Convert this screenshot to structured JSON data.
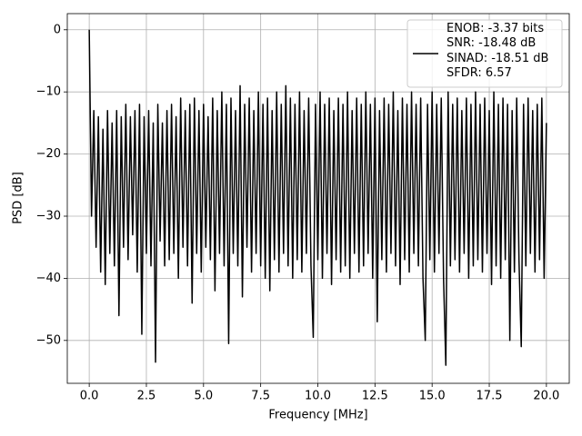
{
  "chart_data": {
    "type": "line",
    "xlabel": "Frequency [MHz]",
    "ylabel": "PSD [dB]",
    "xlim": [
      -0.96,
      21.0
    ],
    "ylim": [
      -56.9,
      2.6
    ],
    "xticks": [
      {
        "value": 0,
        "label": "0.0"
      },
      2.5,
      {
        "value": 5,
        "label": "5.0"
      },
      7.5,
      {
        "value": 10,
        "label": "10.0"
      },
      12.5,
      {
        "value": 15,
        "label": "15.0"
      },
      17.5,
      {
        "value": 20,
        "label": "20.0"
      }
    ],
    "yticks": [
      {
        "value": -50,
        "label": "−50"
      },
      {
        "value": -40,
        "label": "−40"
      },
      {
        "value": -30,
        "label": "−30"
      },
      {
        "value": -20,
        "label": "−20"
      },
      {
        "value": -10,
        "label": "−10"
      },
      0
    ],
    "grid": true,
    "legend": "upper right",
    "x": [
      0,
      0.1,
      0.2,
      0.3,
      0.4,
      0.5,
      0.6,
      0.7,
      0.8,
      0.9,
      1,
      1.1,
      1.2,
      1.3,
      1.4,
      1.5,
      1.6,
      1.7,
      1.8,
      1.9,
      2,
      2.1,
      2.2,
      2.3,
      2.4,
      2.5,
      2.6,
      2.7,
      2.8,
      2.9,
      3,
      3.1,
      3.2,
      3.3,
      3.4,
      3.5,
      3.6,
      3.7,
      3.8,
      3.9,
      4,
      4.1,
      4.2,
      4.3,
      4.4,
      4.5,
      4.6,
      4.7,
      4.8,
      4.9,
      5,
      5.1,
      5.2,
      5.3,
      5.4,
      5.5,
      5.6,
      5.7,
      5.8,
      5.9,
      6,
      6.1,
      6.2,
      6.3,
      6.4,
      6.5,
      6.6,
      6.7,
      6.8,
      6.9,
      7,
      7.1,
      7.2,
      7.3,
      7.4,
      7.5,
      7.6,
      7.7,
      7.8,
      7.9,
      8,
      8.1,
      8.2,
      8.3,
      8.4,
      8.5,
      8.6,
      8.7,
      8.8,
      8.9,
      9,
      9.1,
      9.2,
      9.3,
      9.4,
      9.5,
      9.6,
      9.7,
      9.8,
      9.9,
      10,
      10.1,
      10.2,
      10.3,
      10.4,
      10.5,
      10.6,
      10.7,
      10.8,
      10.9,
      11,
      11.1,
      11.2,
      11.3,
      11.4,
      11.5,
      11.6,
      11.7,
      11.8,
      11.9,
      12,
      12.1,
      12.2,
      12.3,
      12.4,
      12.5,
      12.6,
      12.7,
      12.8,
      12.9,
      13,
      13.1,
      13.2,
      13.3,
      13.4,
      13.5,
      13.6,
      13.7,
      13.8,
      13.9,
      14,
      14.1,
      14.2,
      14.3,
      14.4,
      14.5,
      14.6,
      14.7,
      14.8,
      14.9,
      15,
      15.1,
      15.2,
      15.3,
      15.4,
      15.5,
      15.6,
      15.7,
      15.8,
      15.9,
      16,
      16.1,
      16.2,
      16.3,
      16.4,
      16.5,
      16.6,
      16.7,
      16.8,
      16.9,
      17,
      17.1,
      17.2,
      17.3,
      17.4,
      17.5,
      17.6,
      17.7,
      17.8,
      17.9,
      18,
      18.1,
      18.2,
      18.3,
      18.4,
      18.5,
      18.6,
      18.7,
      18.8,
      18.9,
      19,
      19.1,
      19.2,
      19.3,
      19.4,
      19.5,
      19.6,
      19.7,
      19.8,
      19.9,
      20
    ],
    "series": [
      {
        "name": "ENOB: -3.37 bits\nSNR: -18.48 dB\nSINAD: -18.51 dB\nSFDR: 6.57",
        "color": "#000000",
        "values": [
          0,
          -30,
          -13,
          -35,
          -14,
          -39,
          -16,
          -41,
          -13,
          -36,
          -15,
          -38,
          -13,
          -46,
          -14,
          -35,
          -12,
          -37,
          -14,
          -33,
          -13,
          -39,
          -12,
          -49,
          -14,
          -36,
          -13,
          -38,
          -15,
          -53.5,
          -12,
          -34,
          -15,
          -38,
          -13,
          -37,
          -12,
          -36,
          -14,
          -40,
          -11,
          -35,
          -13,
          -38,
          -12,
          -44,
          -11,
          -36,
          -13,
          -39,
          -12,
          -35,
          -14,
          -37,
          -11,
          -42,
          -13,
          -36,
          -10,
          -38,
          -12,
          -50.5,
          -11,
          -36,
          -13,
          -38,
          -9,
          -43,
          -12,
          -35,
          -11,
          -39,
          -13,
          -36,
          -10,
          -38,
          -12,
          -40,
          -11,
          -42,
          -13,
          -37,
          -10,
          -39,
          -12,
          -36,
          -9,
          -38,
          -11,
          -40,
          -12,
          -37,
          -10,
          -39,
          -13,
          -36,
          -11,
          -38,
          -49.5,
          -12,
          -37,
          -10,
          -40,
          -12,
          -36,
          -11,
          -41,
          -13,
          -37,
          -11,
          -39,
          -12,
          -38,
          -10,
          -40,
          -13,
          -36,
          -11,
          -39,
          -12,
          -38,
          -10,
          -36,
          -12,
          -40,
          -11,
          -47,
          -13,
          -37,
          -11,
          -39,
          -12,
          -36,
          -10,
          -38,
          -13,
          -41,
          -11,
          -37,
          -12,
          -39,
          -10,
          -36,
          -12,
          -38,
          -11,
          -40,
          -50,
          -12,
          -37,
          -10,
          -39,
          -12,
          -36,
          -11,
          -40,
          -54,
          -10,
          -38,
          -12,
          -37,
          -11,
          -39,
          -13,
          -36,
          -11,
          -40,
          -12,
          -38,
          -10,
          -37,
          -12,
          -39,
          -11,
          -36,
          -13,
          -41,
          -10,
          -38,
          -12,
          -40,
          -11,
          -37,
          -12,
          -50,
          -13,
          -39,
          -11,
          -37,
          -51,
          -12,
          -38,
          -11,
          -36,
          -13,
          -39,
          -12,
          -37,
          -11,
          -40,
          -15
        ]
      }
    ]
  }
}
